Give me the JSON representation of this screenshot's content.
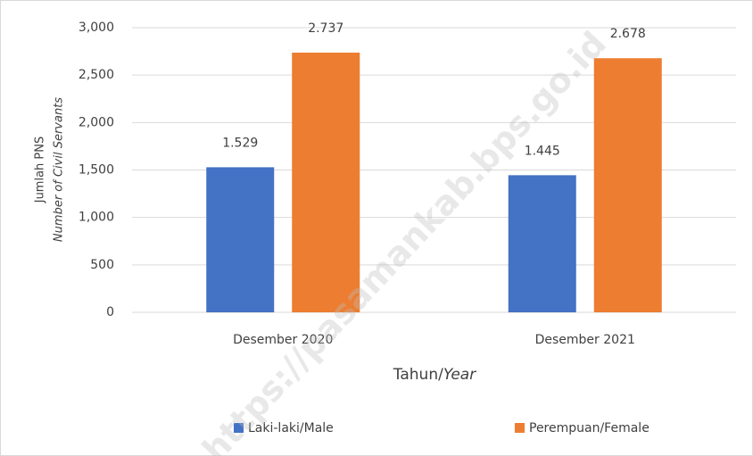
{
  "chart_data": {
    "type": "bar",
    "categories": [
      "Desember 2020",
      "Desember 2021"
    ],
    "series": [
      {
        "name": "Laki-laki/Male",
        "color": "#4472c4",
        "values": [
          1529,
          1445
        ],
        "value_labels": [
          "1.529",
          "1.445"
        ]
      },
      {
        "name": "Perempuan/Female",
        "color": "#ed7d31",
        "values": [
          2737,
          2678
        ],
        "value_labels": [
          "2.737",
          "2.678"
        ]
      }
    ],
    "ylim": [
      0,
      3000
    ],
    "yticks": [
      0,
      500,
      {
        "value": 1000,
        "label": "1,000"
      },
      {
        "value": 1500,
        "label": "1,500"
      },
      {
        "value": 2000,
        "label": "2,000"
      },
      {
        "value": 2500,
        "label": "2,500"
      },
      {
        "value": 3000,
        "label": "3,000"
      }
    ],
    "grid": true,
    "xlabel": [
      "Tahun/",
      "Year"
    ],
    "ylabel": [
      "Jumlah PNS",
      "Number of Civil Servants"
    ],
    "legend": "bottom",
    "watermark": "https://pasamankab.bps.go.id"
  }
}
